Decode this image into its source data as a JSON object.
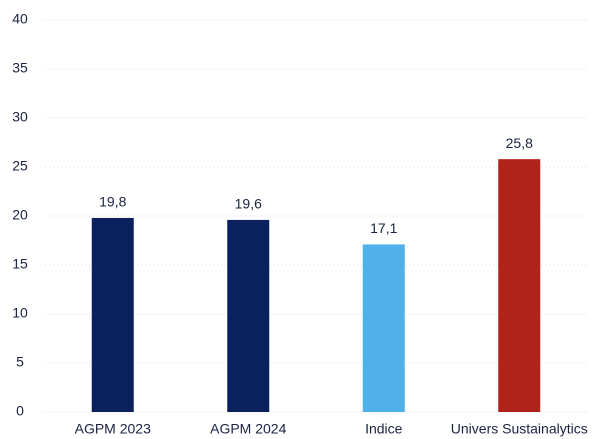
{
  "chart_data": {
    "type": "bar",
    "categories": [
      "AGPM 2023",
      "AGPM 2024",
      "Indice",
      "Univers Sustainalytics"
    ],
    "values": [
      19.8,
      19.6,
      17.1,
      25.8
    ],
    "value_labels": [
      "19,8",
      "19,6",
      "17,1",
      "25,8"
    ],
    "colors": [
      "#0b215e",
      "#0b215e",
      "#4fb0ea",
      "#b0231a"
    ],
    "ylim": [
      0,
      40
    ],
    "yticks": [
      0,
      5,
      10,
      15,
      20,
      25,
      30,
      35,
      40
    ],
    "grid": true
  }
}
